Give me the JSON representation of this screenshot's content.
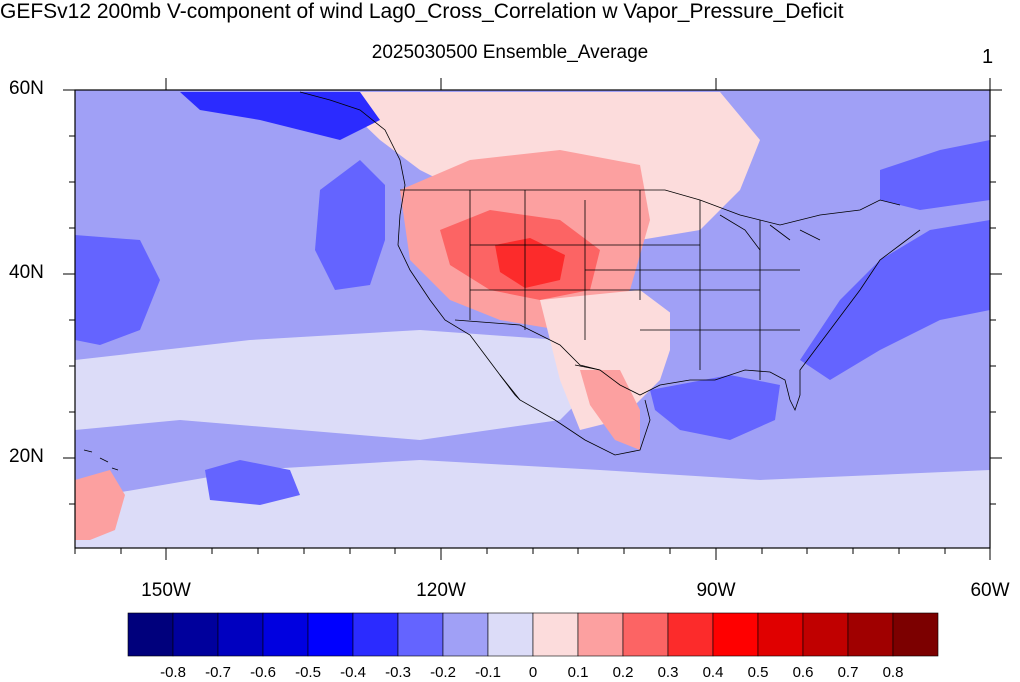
{
  "title": "GEFSv12 200mb V-component of wind Lag0_Cross_Correlation w Vapor_Pressure_Deficit",
  "subtitle": "2025030500 Ensemble_Average",
  "page_number": "1",
  "map": {
    "projection": "cylindrical equidistant",
    "lon_range": [
      -160,
      -60
    ],
    "lat_range": [
      10,
      60
    ],
    "lat_labels": [
      "60N",
      "40N",
      "20N"
    ],
    "lon_labels": [
      "150W",
      "120W",
      "90W",
      "60W"
    ],
    "boundaries": [
      "coastlines",
      "US state lines",
      "country borders"
    ]
  },
  "colorbar": {
    "labels": [
      "-0.8",
      "-0.7",
      "-0.6",
      "-0.5",
      "-0.4",
      "-0.3",
      "-0.2",
      "-0.1",
      "0",
      "0.1",
      "0.2",
      "0.3",
      "0.4",
      "0.5",
      "0.6",
      "0.7",
      "0.8"
    ],
    "colors": [
      "#00007c",
      "#00009c",
      "#0000c0",
      "#0000e0",
      "#0000ff",
      "#2b2bff",
      "#6464ff",
      "#a0a0f6",
      "#dcdcf8",
      "#fcdcdc",
      "#fca0a0",
      "#fc6464",
      "#fc2b2b",
      "#ff0000",
      "#e00000",
      "#c00000",
      "#a00000",
      "#7c0000"
    ]
  },
  "field_regions": {
    "background": "#a0a0f6",
    "pacific_west_strong_negative": "#6464ff",
    "gulf_of_alaska_negative": "#2b2bff",
    "subtropical_pacific_weak_negative": "#dcdcf8",
    "hawaii_weak_positive": "#fca0a0",
    "western_us_positive": "#fca0a0",
    "rockies_core_positive": "#fc6464",
    "rockies_peak_positive": "#fc2b2b",
    "south_central_weak_positive": "#fcdcdc",
    "mexico_positive": "#fca0a0",
    "southeast_us_negative": "#a0a0f6",
    "gulf_of_mexico_negative": "#6464ff",
    "atlantic_coast_negative": "#6464ff",
    "canada_weak_positive": "#fcdcdc"
  }
}
